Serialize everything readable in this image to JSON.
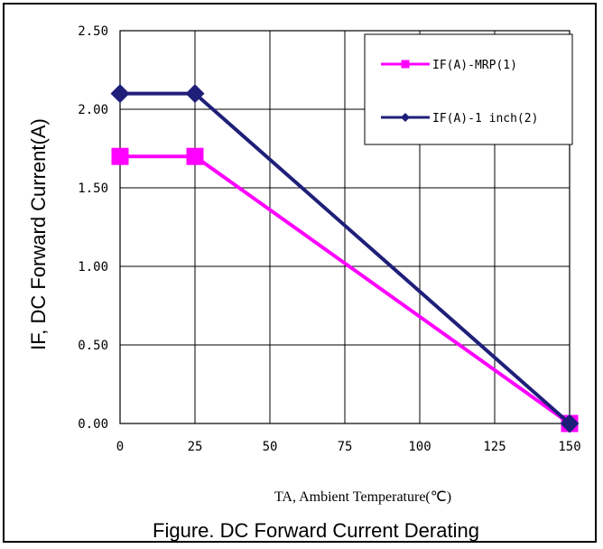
{
  "chart_data": {
    "type": "line",
    "title": "Figure. DC Forward Current Derating",
    "xlabel": "TA, Ambient Temperature(℃)",
    "ylabel": "IF, DC Forward Current(A)",
    "xlim": [
      0,
      150
    ],
    "ylim": [
      0,
      2.5
    ],
    "xticks": [
      0,
      25,
      50,
      75,
      100,
      125,
      150
    ],
    "xtick_labels": [
      "0",
      "25",
      "50",
      "75",
      "100",
      "125",
      "150"
    ],
    "yticks": [
      0,
      0.5,
      1.0,
      1.5,
      2.0,
      2.5
    ],
    "ytick_labels": [
      "0.00",
      "0.50",
      "1.00",
      "1.50",
      "2.00",
      "2.50"
    ],
    "grid": true,
    "legend_position": "top-right",
    "series": [
      {
        "name": "IF(A)-MRP(1)",
        "color": "#ff00ff",
        "marker": "square",
        "x": [
          0,
          25,
          150
        ],
        "values": [
          1.7,
          1.7,
          0
        ]
      },
      {
        "name": "IF(A)-1 inch(2)",
        "color": "#1f1f7a",
        "marker": "diamond",
        "x": [
          0,
          25,
          150
        ],
        "values": [
          2.1,
          2.1,
          0
        ]
      }
    ]
  }
}
